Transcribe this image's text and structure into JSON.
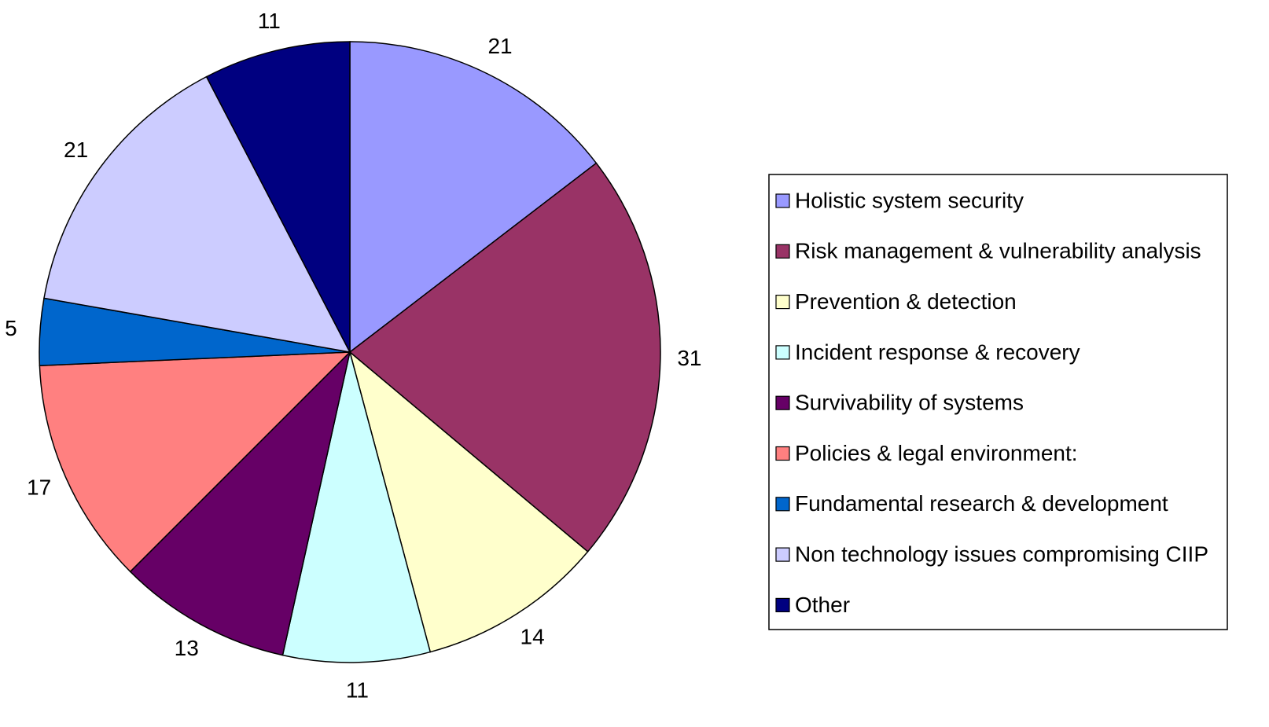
{
  "chart_data": {
    "type": "pie",
    "categories": [
      "Holistic system security",
      "Risk management & vulnerability analysis",
      "Prevention & detection",
      "Incident response & recovery",
      "Survivability of systems",
      "Policies & legal environment:",
      "Fundamental research & development",
      "Non technology issues compromising CIIP",
      "Other"
    ],
    "values": [
      21,
      31,
      14,
      11,
      13,
      17,
      5,
      21,
      11
    ],
    "colors": [
      "#9999ff",
      "#993366",
      "#ffffcc",
      "#ccffff",
      "#660066",
      "#ff8080",
      "#0066cc",
      "#ccccff",
      "#000080"
    ],
    "legend": "right"
  }
}
